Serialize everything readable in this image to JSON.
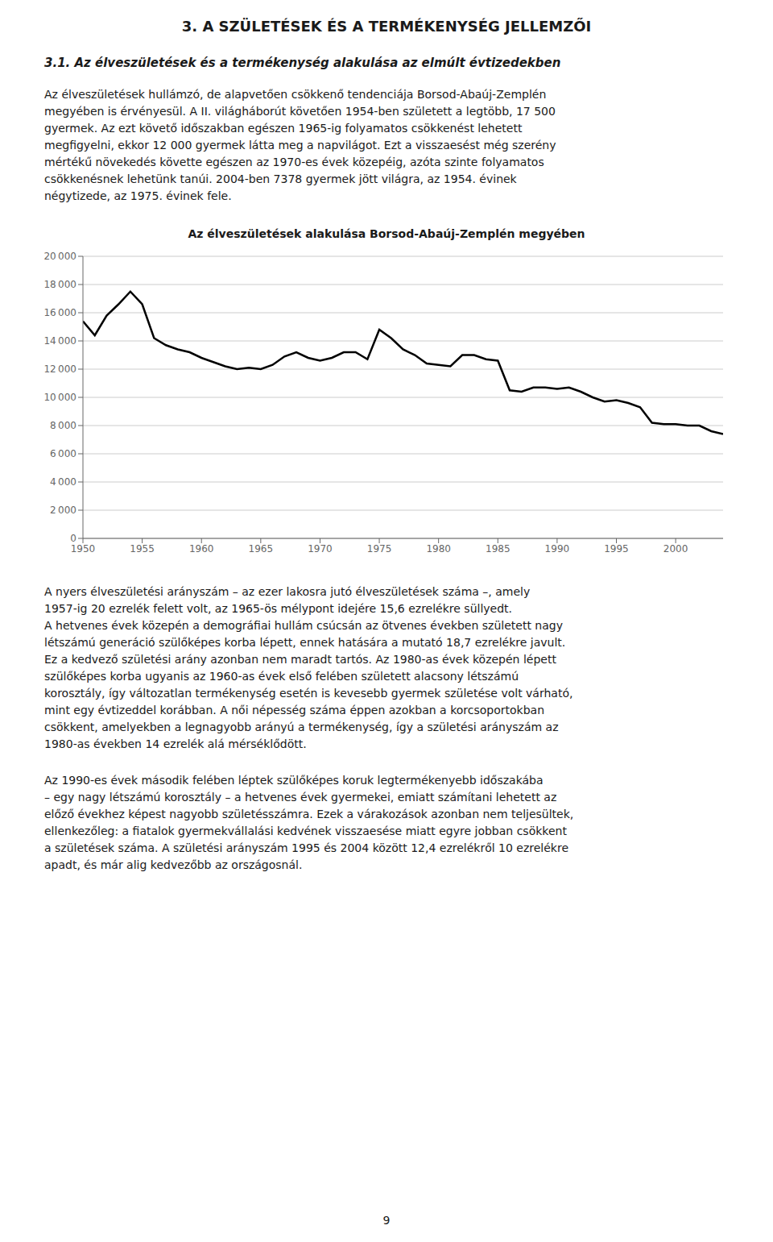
{
  "page_title": "3. A SZÜLETÉSEK ÉS A TERMÉKENYSÉG JELLEMZŐI",
  "section_title": "3.1. Az élveszületések és a termékenység alakulása az elmúlt évtizedekben",
  "para1_lines": [
    "Az élveszületések hullámzó, de alapvetően csökkenő tendenciája Borsod-Abaúj-Zemplén",
    "megyében is érvényesül. A II. világháborút követően 1954-ben született a legtöbb, 17 500",
    "gyermek. Az ezt követő időszakban egészen 1965-ig folyamatos csökkenést lehetett",
    "megfigyelni, ekkor 12 000 gyermek látta meg a napvilágot. Ezt a visszaesést még szerény",
    "mértékű növekedés követte egészen az 1970-es évek közepéig, azóta szinte folyamatos",
    "csökkenésnek lehetünk tanúi. 2004-ben 7378 gyermek jött világra, az 1954. évinek",
    "négytizede, az 1975. évinek fele."
  ],
  "para2_lines": [
    "A nyers élveszületési arányszám – az ezer lakosra jutó élveszületések száma –, amely",
    "1957-ig 20 ezrelék felett volt, az 1965-ös mélypont idejére 15,6 ezrelékre süllyedt.",
    "A hetvenes évek közepén a demográfiai hullám csúcsán az ötvenes években született nagy",
    "létszámú generáció szülőképes korba lépett, ennek hatására a mutató 18,7 ezrelékre javult.",
    "Ez a kedvező születési arány azonban nem maradt tartós. Az 1980-as évek közepén lépett",
    "szülőképes korba ugyanis az 1960-as évek első felében született alacsony létszámú",
    "korosztály, így változatlan termékenység esetén is kevesebb gyermek születése volt várható,",
    "mint egy évtizeddel korábban. A női népesség száma éppen azokban a korcsoportokban",
    "csökkent, amelyekben a legnagyobb arányú a termékenység, így a születési arányszám az",
    "1980-as években 14 ezrelék alá mérséklődött."
  ],
  "para3_lines": [
    "Az 1990-es évek második felében léptek szülőképes koruk legtermékenyebb időszakába",
    "– egy nagy létszámú korosztály – a hetvenes évek gyermekei, emiatt számítani lehetett az",
    "előző évekhez képest nagyobb születésszámra. Ezek a várakozások azonban nem teljesültek,",
    "ellenkezőleg: a fiatalok gyermekvállalási kedvének visszaesése miatt egyre jobban csökkent",
    "a születések száma. A születési arányszám 1995 és 2004 között 12,4 ezrelékről 10 ezrelékre",
    "apadt, és már alig kedvezőbb az országosnál."
  ],
  "footer": "9",
  "chart_data": {
    "type": "line",
    "title": "Az élveszületések alakulása Borsod-Abaúj-Zemplén megyében",
    "x": [
      1950,
      1951,
      1952,
      1953,
      1954,
      1955,
      1956,
      1957,
      1958,
      1959,
      1960,
      1961,
      1962,
      1963,
      1964,
      1965,
      1966,
      1967,
      1968,
      1969,
      1970,
      1971,
      1972,
      1973,
      1974,
      1975,
      1976,
      1977,
      1978,
      1979,
      1980,
      1981,
      1982,
      1983,
      1984,
      1985,
      1986,
      1987,
      1988,
      1989,
      1990,
      1991,
      1992,
      1993,
      1994,
      1995,
      1996,
      1997,
      1998,
      1999,
      2000,
      2001,
      2002,
      2003,
      2004
    ],
    "values": [
      15400,
      14400,
      15800,
      16600,
      17500,
      16600,
      14200,
      13700,
      13400,
      13200,
      12800,
      12500,
      12200,
      12000,
      12100,
      12000,
      12300,
      12900,
      13200,
      12800,
      12600,
      12800,
      13200,
      13200,
      12700,
      14800,
      14200,
      13400,
      13000,
      12400,
      12300,
      12200,
      13000,
      13000,
      12700,
      12600,
      10500,
      10400,
      10700,
      10700,
      10600,
      10700,
      10400,
      10000,
      9700,
      9800,
      9600,
      9300,
      8200,
      8100,
      8100,
      8000,
      8000,
      7600,
      7400
    ],
    "color": "#000000",
    "xlim": [
      1950,
      2004
    ],
    "xticks": [
      1950,
      1955,
      1960,
      1965,
      1970,
      1975,
      1980,
      1985,
      1990,
      1995,
      2000
    ],
    "ylim": [
      0,
      20000
    ],
    "yticks": [
      0,
      {
        "value": 2000,
        "label": "2 000"
      },
      {
        "value": 4000,
        "label": "4 000"
      },
      {
        "value": 6000,
        "label": "6 000"
      },
      {
        "value": 8000,
        "label": "8 000"
      },
      {
        "value": 10000,
        "label": "10 000"
      },
      {
        "value": 12000,
        "label": "12 000"
      },
      {
        "value": 14000,
        "label": "14 000"
      },
      {
        "value": 16000,
        "label": "16 000"
      },
      {
        "value": 18000,
        "label": "18 000"
      },
      {
        "value": 20000,
        "label": "20 000"
      }
    ],
    "grid": "y"
  }
}
